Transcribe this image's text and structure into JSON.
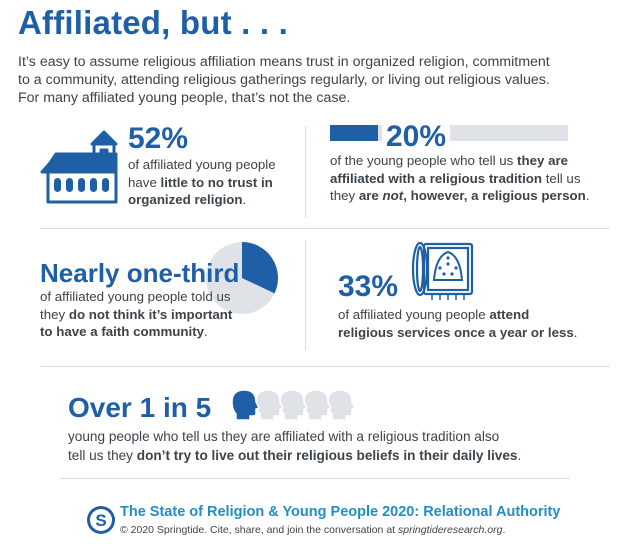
{
  "title": "Affiliated, but . . .",
  "intro": {
    "line1": "It’s easy to assume religious affiliation means trust in organized religion, commitment",
    "line2": "to a community, attending religious gatherings regularly, or living out religious values.",
    "line3": "For many affiliated young people, that’s not the case."
  },
  "stat_trust": {
    "value": "52%",
    "line1": "of affiliated young people",
    "line2_pre": "have ",
    "line2_bold": "little to no trust in",
    "line3_bold": "organized religion",
    "line3_post": "."
  },
  "stat_not_religious": {
    "value": "20%",
    "bar_fraction": 0.2,
    "line1_pre": "of the young people who tell us ",
    "line1_bold": "they are",
    "line2_bold": "affiliated with a religious tradition",
    "line2_post": " tell us",
    "line3_pre": "they ",
    "line3_bold1": "are ",
    "line3_bold_italic": "not",
    "line3_bold2": ", however, a religious person",
    "line3_post": "."
  },
  "stat_community": {
    "value": "Nearly one-third",
    "pie_fraction": 0.32,
    "line1": "of affiliated young people told us",
    "line2_pre": "they ",
    "line2_bold": "do not think it’s important",
    "line3_bold": "to have a faith community",
    "line3_post": "."
  },
  "stat_services": {
    "value": "33%",
    "line1_pre": "of affiliated young people ",
    "line1_bold": "attend",
    "line2_bold": "religious services once a year or less",
    "line2_post": "."
  },
  "stat_beliefs": {
    "value": "Over 1 in 5",
    "highlighted_heads": 1,
    "total_heads": 5,
    "line1": "young people who tell us they are affiliated with a religious tradition also",
    "line2_pre": "tell us they ",
    "line2_bold": "don’t try to live out their religious beliefs in their daily lives",
    "line2_post": "."
  },
  "footer": {
    "logo_letter": "S",
    "title": "The State of Religion & Young People 2020: Relational Authority",
    "sub_pre": "© 2020 Springtide. Cite, share, and join the conversation at ",
    "sub_link": "springtideresearch.org",
    "sub_post": "."
  },
  "colors": {
    "primary": "#1f5fa6",
    "accent": "#1f8fc4",
    "muted": "#dfe3e8",
    "text": "#3d434a"
  },
  "icons": {
    "church": "church-icon",
    "bar": "progress-bar-icon",
    "pie": "pie-chart-icon",
    "rug": "prayer-rug-icon",
    "heads": "person-head-icon",
    "logo": "springtide-logo-icon"
  }
}
